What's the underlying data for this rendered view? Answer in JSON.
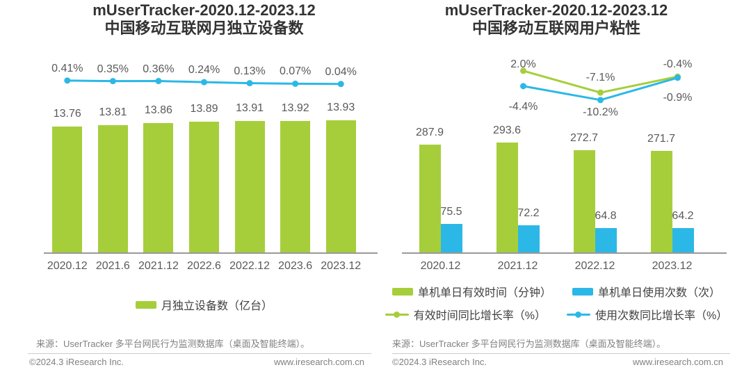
{
  "page": {
    "copyright": "©2024.3 iResearch Inc.",
    "website": "www.iresearch.com.cn"
  },
  "colors": {
    "green": "#a6ce3b",
    "blue": "#2cb8e6",
    "title_text": "#333333",
    "value_text": "#595959",
    "axis_line": "#999999",
    "footer_text": "#808080",
    "divider": "#cccccc"
  },
  "chart_data": [
    {
      "type": "bar+line",
      "title_line1": "mUserTracker-2020.12-2023.12",
      "title_line2": "中国移动互联网月独立设备数",
      "categories": [
        "2020.12",
        "2021.6",
        "2021.12",
        "2022.6",
        "2022.12",
        "2023.6",
        "2023.12"
      ],
      "bar_series": [
        {
          "color": "green",
          "name": "月独立设备数（亿台）",
          "values": [
            13.76,
            13.81,
            13.86,
            13.89,
            13.91,
            13.92,
            13.93
          ],
          "labels": [
            "13.76",
            "13.81",
            "13.86",
            "13.89",
            "13.91",
            "13.92",
            "13.93"
          ]
        }
      ],
      "line_series": [
        {
          "color": "blue",
          "values": [
            0.41,
            0.35,
            0.36,
            0.24,
            0.13,
            0.07,
            0.04
          ],
          "labels": [
            "0.41%",
            "0.35%",
            "0.36%",
            "0.24%",
            "0.13%",
            "0.07%",
            "0.04%"
          ],
          "label_side": [
            "above",
            "above",
            "above",
            "above",
            "above",
            "above",
            "above"
          ]
        }
      ],
      "legend": [
        [
          {
            "swatch": "bar",
            "color": "green",
            "label": "月独立设备数（亿台）"
          }
        ]
      ],
      "ylim": [
        10.3,
        14.05
      ],
      "line_ylim": [
        -2,
        1
      ],
      "grid": false,
      "source": "来源：UserTracker 多平台网民行为监测数据库（桌面及智能终端）。"
    },
    {
      "type": "bar+line",
      "title_line1": "mUserTracker-2020.12-2023.12",
      "title_line2": "中国移动互联网用户粘性",
      "categories": [
        "2020.12",
        "2021.12",
        "2022.12",
        "2023.12"
      ],
      "bar_series": [
        {
          "color": "green",
          "name": "单机单日有效时间（分钟）",
          "values": [
            287.9,
            293.6,
            272.7,
            271.7
          ],
          "labels": [
            "287.9",
            "293.6",
            "272.7",
            "271.7"
          ]
        },
        {
          "color": "blue",
          "name": "单机单日使用次数（次）",
          "values": [
            75.5,
            72.2,
            64.8,
            64.2
          ],
          "labels": [
            "75.5",
            "72.2",
            "64.8",
            "64.2"
          ]
        }
      ],
      "line_series": [
        {
          "color": "green",
          "name": "有效时间同比增长率（%）",
          "values": [
            null,
            2.0,
            -7.1,
            -0.4
          ],
          "labels": [
            null,
            "2.0%",
            "-7.1%",
            "-0.4%"
          ],
          "label_side": [
            null,
            "above",
            "above",
            "above"
          ]
        },
        {
          "color": "blue",
          "name": "使用次数同比增长率（%）",
          "values": [
            null,
            -4.4,
            -10.2,
            -0.9
          ],
          "labels": [
            null,
            "-4.4%",
            "-10.2%",
            "-0.9%"
          ],
          "label_side": [
            null,
            "below",
            "below",
            "below"
          ]
        }
      ],
      "legend": [
        [
          {
            "swatch": "bar",
            "color": "green",
            "label": "单机单日有效时间（分钟）"
          },
          {
            "swatch": "bar",
            "color": "blue",
            "label": "单机单日使用次数（次）"
          }
        ],
        [
          {
            "swatch": "line",
            "color": "green",
            "label": "有效时间同比增长率（%）"
          },
          {
            "swatch": "line",
            "color": "blue",
            "label": "使用次数同比增长率（%）"
          }
        ]
      ],
      "ylim": [
        0,
        320
      ],
      "line_ylim": [
        -12,
        4
      ],
      "grid": false,
      "source": "来源：UserTracker 多平台网民行为监测数据库（桌面及智能终端）。"
    }
  ]
}
